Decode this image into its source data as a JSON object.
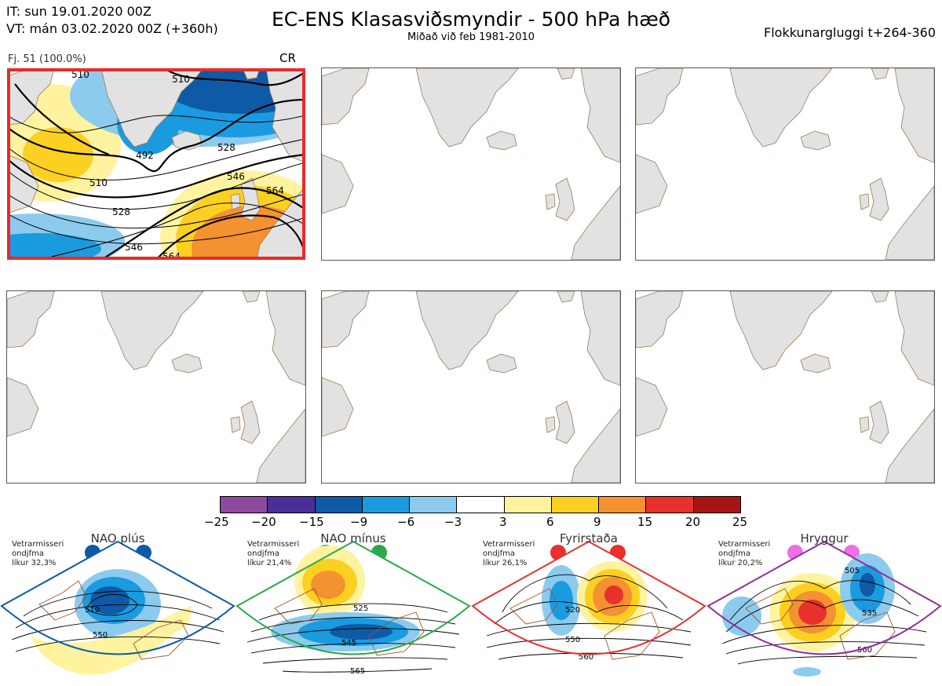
{
  "header": {
    "it_line": "IT: sun 19.01.2020 00Z",
    "vt_line": "VT: mán 03.02.2020 00Z  (+360h)",
    "title": "EC-ENS Klasasviðsmyndir - 500 hPa hæð",
    "subtitle": "Miðað við feb 1981-2010",
    "window": "Flokkunargluggi t+264-360"
  },
  "cluster": {
    "label": "Fj. 51 (100.0%)",
    "regime_code": "CR",
    "contour_labels": [
      "492",
      "510",
      "510",
      "528",
      "528",
      "546",
      "546",
      "564",
      "564",
      "510"
    ]
  },
  "colorbar": {
    "colors": [
      "#8e4a9e",
      "#4a2f96",
      "#0e5aa6",
      "#1a9be0",
      "#8ccbee",
      "#ffffff",
      "#fff3a0",
      "#fcd021",
      "#f49130",
      "#e8302c",
      "#a81416"
    ],
    "ticks": [
      "−25",
      "−20",
      "−15",
      "−9",
      "−6",
      "−3",
      "3",
      "6",
      "9",
      "15",
      "20",
      "25"
    ]
  },
  "regimes": [
    {
      "title": "NAO plús",
      "info1": "Vetrarmisseri",
      "info2": "ondjfma",
      "info3": "líkur 32,3%",
      "color": "#0e5aa6",
      "labels": [
        "510",
        "550"
      ]
    },
    {
      "title": "NAO mínus",
      "info1": "Vetrarmisseri",
      "info2": "ondjfma",
      "info3": "líkur 21,4%",
      "color": "#2aa84a",
      "labels": [
        "525",
        "545",
        "565"
      ]
    },
    {
      "title": "Fyrirstaða",
      "info1": "Vetrarmisseri",
      "info2": "ondjfma",
      "info3": "líkur 26,1%",
      "color": "#e8302c",
      "labels": [
        "520",
        "550",
        "560"
      ]
    },
    {
      "title": "Hryggur",
      "info1": "Vetrarmisseri",
      "info2": "ondjfma",
      "info3": "líkur 20,2%",
      "color": "#8e2f98",
      "labels": [
        "505",
        "535",
        "560"
      ]
    }
  ]
}
